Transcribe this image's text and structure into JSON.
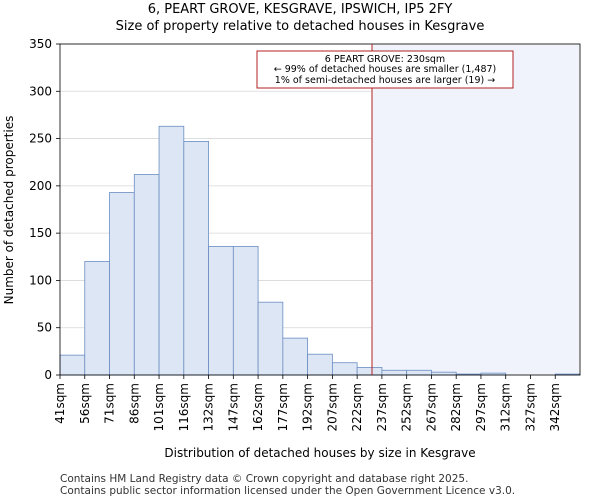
{
  "header": {
    "title_line1": "6, PEART GROVE, KESGRAVE, IPSWICH, IP5 2FY",
    "title_line2": "Size of property relative to detached houses in Kesgrave"
  },
  "chart_data": {
    "type": "bar",
    "categories": [
      "41sqm",
      "56sqm",
      "71sqm",
      "86sqm",
      "101sqm",
      "116sqm",
      "132sqm",
      "147sqm",
      "162sqm",
      "177sqm",
      "192sqm",
      "207sqm",
      "222sqm",
      "237sqm",
      "252sqm",
      "267sqm",
      "282sqm",
      "297sqm",
      "312sqm",
      "327sqm",
      "342sqm"
    ],
    "values": [
      21,
      120,
      193,
      212,
      263,
      247,
      136,
      136,
      77,
      39,
      22,
      13,
      8,
      5,
      5,
      3,
      1,
      2,
      0,
      0,
      1
    ],
    "xlabel": "Distribution of detached houses by size in Kesgrave",
    "ylabel": "Number of detached properties",
    "ylim": [
      0,
      350
    ],
    "yticks": [
      0,
      50,
      100,
      150,
      200,
      250,
      300,
      350
    ],
    "marker_value_sqm": 230,
    "annotation": {
      "line1": "6 PEART GROVE: 230sqm",
      "line2": "← 99% of detached houses are smaller (1,487)",
      "line3": "1% of semi-detached houses are larger (19) →"
    },
    "colors": {
      "bar_fill": "#dce6f4",
      "bar_stroke": "#6b8ec2",
      "highlight": "#f0f3fb",
      "marker": "#b22222",
      "grid": "#d7d7d7"
    }
  },
  "footer": {
    "line1": "Contains HM Land Registry data © Crown copyright and database right 2025.",
    "line2": "Contains public sector information licensed under the Open Government Licence v3.0."
  }
}
